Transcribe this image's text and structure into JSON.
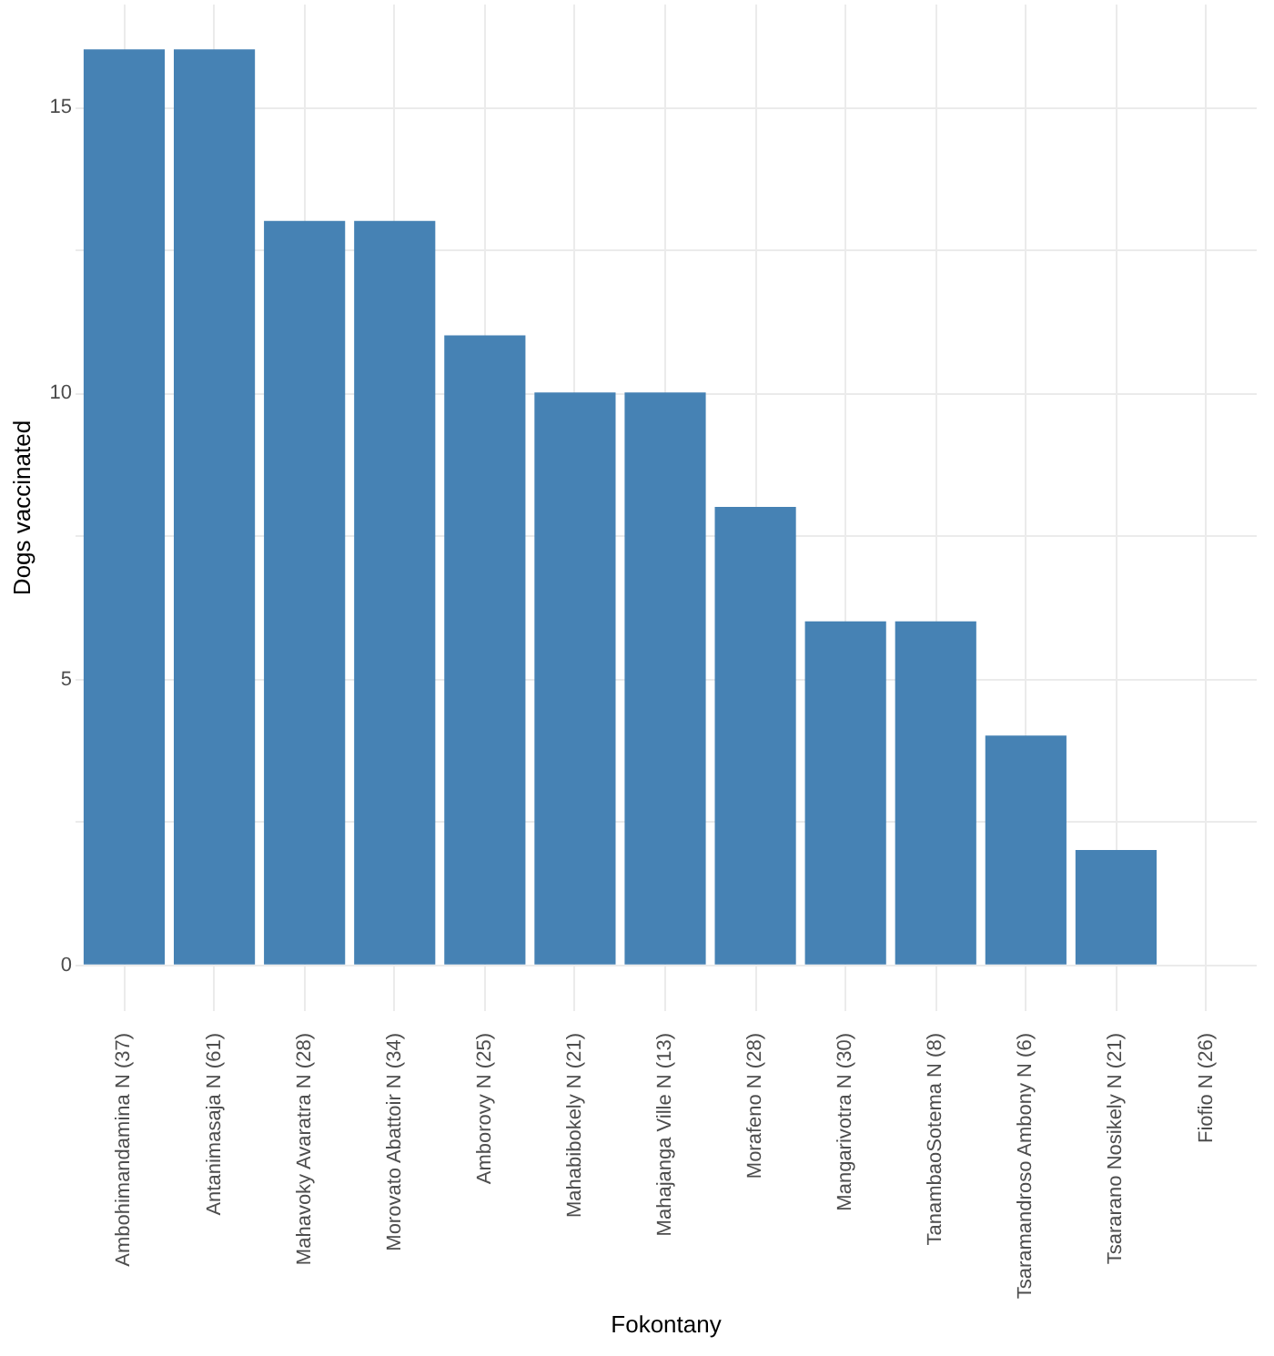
{
  "chart_data": {
    "type": "bar",
    "xlabel": "Fokontany",
    "ylabel": "Dogs vaccinated",
    "categories": [
      "Ambohimandamina N (37)",
      "Antanimasaja N (61)",
      "Mahavoky Avaratra N (28)",
      "Morovato Abattoir N (34)",
      "Amborovy N (25)",
      "Mahabibokely N (21)",
      "Mahajanga Ville N (13)",
      "Morafeno N (28)",
      "Mangarivotra N (30)",
      "TanambaoSotema N (8)",
      "Tsaramandroso Ambony N (6)",
      "Tsararano Nosikely N (21)",
      "Fiofio N (26)"
    ],
    "values": [
      16,
      16,
      13,
      13,
      11,
      10,
      10,
      8,
      6,
      6,
      4,
      2,
      0
    ],
    "color": "#4682b4",
    "ylim": [
      -0.8,
      16.8
    ],
    "yticks": [
      0,
      {
        "value": 2.5,
        "label": null
      },
      5,
      {
        "value": 7.5,
        "label": null
      },
      10,
      {
        "value": 12.5,
        "label": null
      },
      15
    ],
    "grid": true
  }
}
